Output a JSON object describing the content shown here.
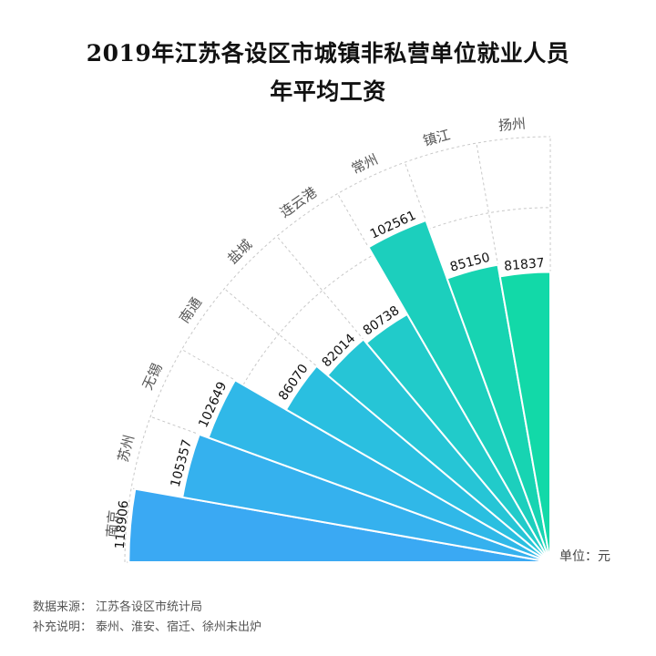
{
  "title": {
    "line1": "2019年江苏各设区市城镇非私营单位就业人员",
    "line2": "年平均工资"
  },
  "unit_label": "单位：元",
  "footer": {
    "source_label": "数据来源：",
    "source_value": "江苏各设区市统计局",
    "note_label": "补充说明：",
    "note_value": "泰州、淮安、宿迁、徐州未出炉"
  },
  "chart_data": {
    "type": "bar",
    "subtype": "polar-fan (radial bars over a 90° quadrant)",
    "title": "2019年江苏各设区市城镇非私营单位就业人员年平均工资",
    "xlabel": "",
    "ylabel": "",
    "unit": "元",
    "categories": [
      "南京",
      "苏州",
      "无锡",
      "南通",
      "盐城",
      "连云港",
      "常州",
      "镇江",
      "扬州"
    ],
    "values": [
      118906,
      105357,
      102649,
      86070,
      82014,
      80738,
      102561,
      85150,
      81837
    ],
    "colors": [
      "#3aa9f3",
      "#35b1ee",
      "#30b8e8",
      "#2abfe0",
      "#26c5d6",
      "#21cbca",
      "#1ccfbd",
      "#17d4b2",
      "#12d9a8"
    ],
    "ylim": [
      0,
      120000
    ],
    "grid_values": [
      100000,
      120000
    ],
    "grid": true,
    "legend": "none",
    "data_labels": true
  }
}
